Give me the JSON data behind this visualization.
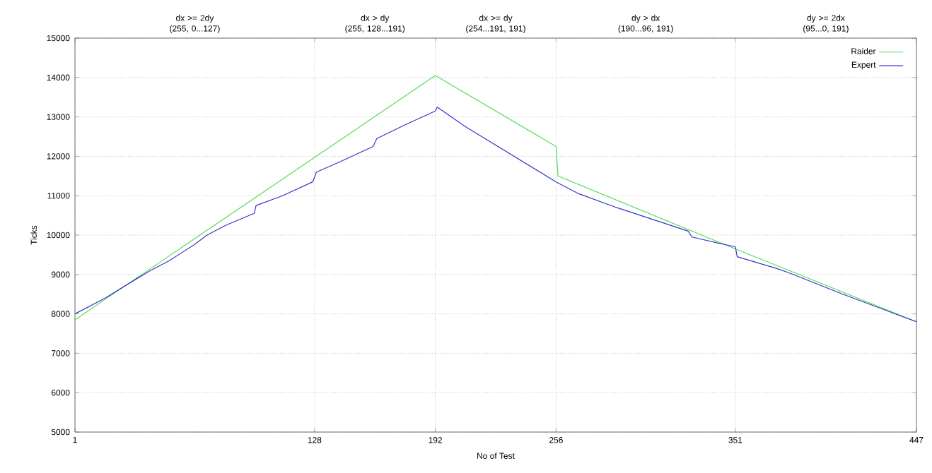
{
  "chart_data": {
    "type": "line",
    "xlabel": "No of Test",
    "ylabel": "Ticks",
    "xlim": [
      1,
      447
    ],
    "ylim": [
      5000,
      15000
    ],
    "xticks": [
      1,
      128,
      192,
      256,
      351,
      447
    ],
    "yticks": [
      5000,
      6000,
      7000,
      8000,
      9000,
      10000,
      11000,
      12000,
      13000,
      14000,
      15000
    ],
    "annotations": [
      "dx >= 2dy\n(255, 0...127)",
      "dx > dy\n(255, 128...191)",
      "dx >= dy\n(254...191, 191)",
      "dy > dx\n(190...96, 191)",
      "dy >= 2dx\n(95...0, 191)"
    ],
    "grid": true,
    "legend": "top right",
    "line_style": "solid",
    "marker": "none",
    "series": [
      {
        "name": "Raider",
        "color": "#55dd55",
        "x": [
          1,
          192,
          256,
          257,
          351,
          447
        ],
        "values": [
          7850,
          14050,
          12250,
          11500,
          9650,
          7800
        ]
      },
      {
        "name": "Expert",
        "color": "#3333cc",
        "x": [
          1,
          17,
          34,
          41,
          51,
          64,
          71,
          81,
          96,
          97,
          111,
          127,
          129,
          141,
          159,
          161,
          176,
          192,
          193,
          208,
          256,
          268,
          288,
          326,
          328,
          351,
          352,
          373,
          379,
          408,
          433,
          447
        ],
        "values": [
          8000,
          8400,
          8900,
          9100,
          9350,
          9750,
          10000,
          10250,
          10550,
          10750,
          11000,
          11350,
          11600,
          11850,
          12250,
          12450,
          12800,
          13150,
          13250,
          12750,
          11350,
          11050,
          10700,
          10100,
          9950,
          9700,
          9450,
          9150,
          9050,
          8500,
          8050,
          7800
        ]
      }
    ]
  }
}
